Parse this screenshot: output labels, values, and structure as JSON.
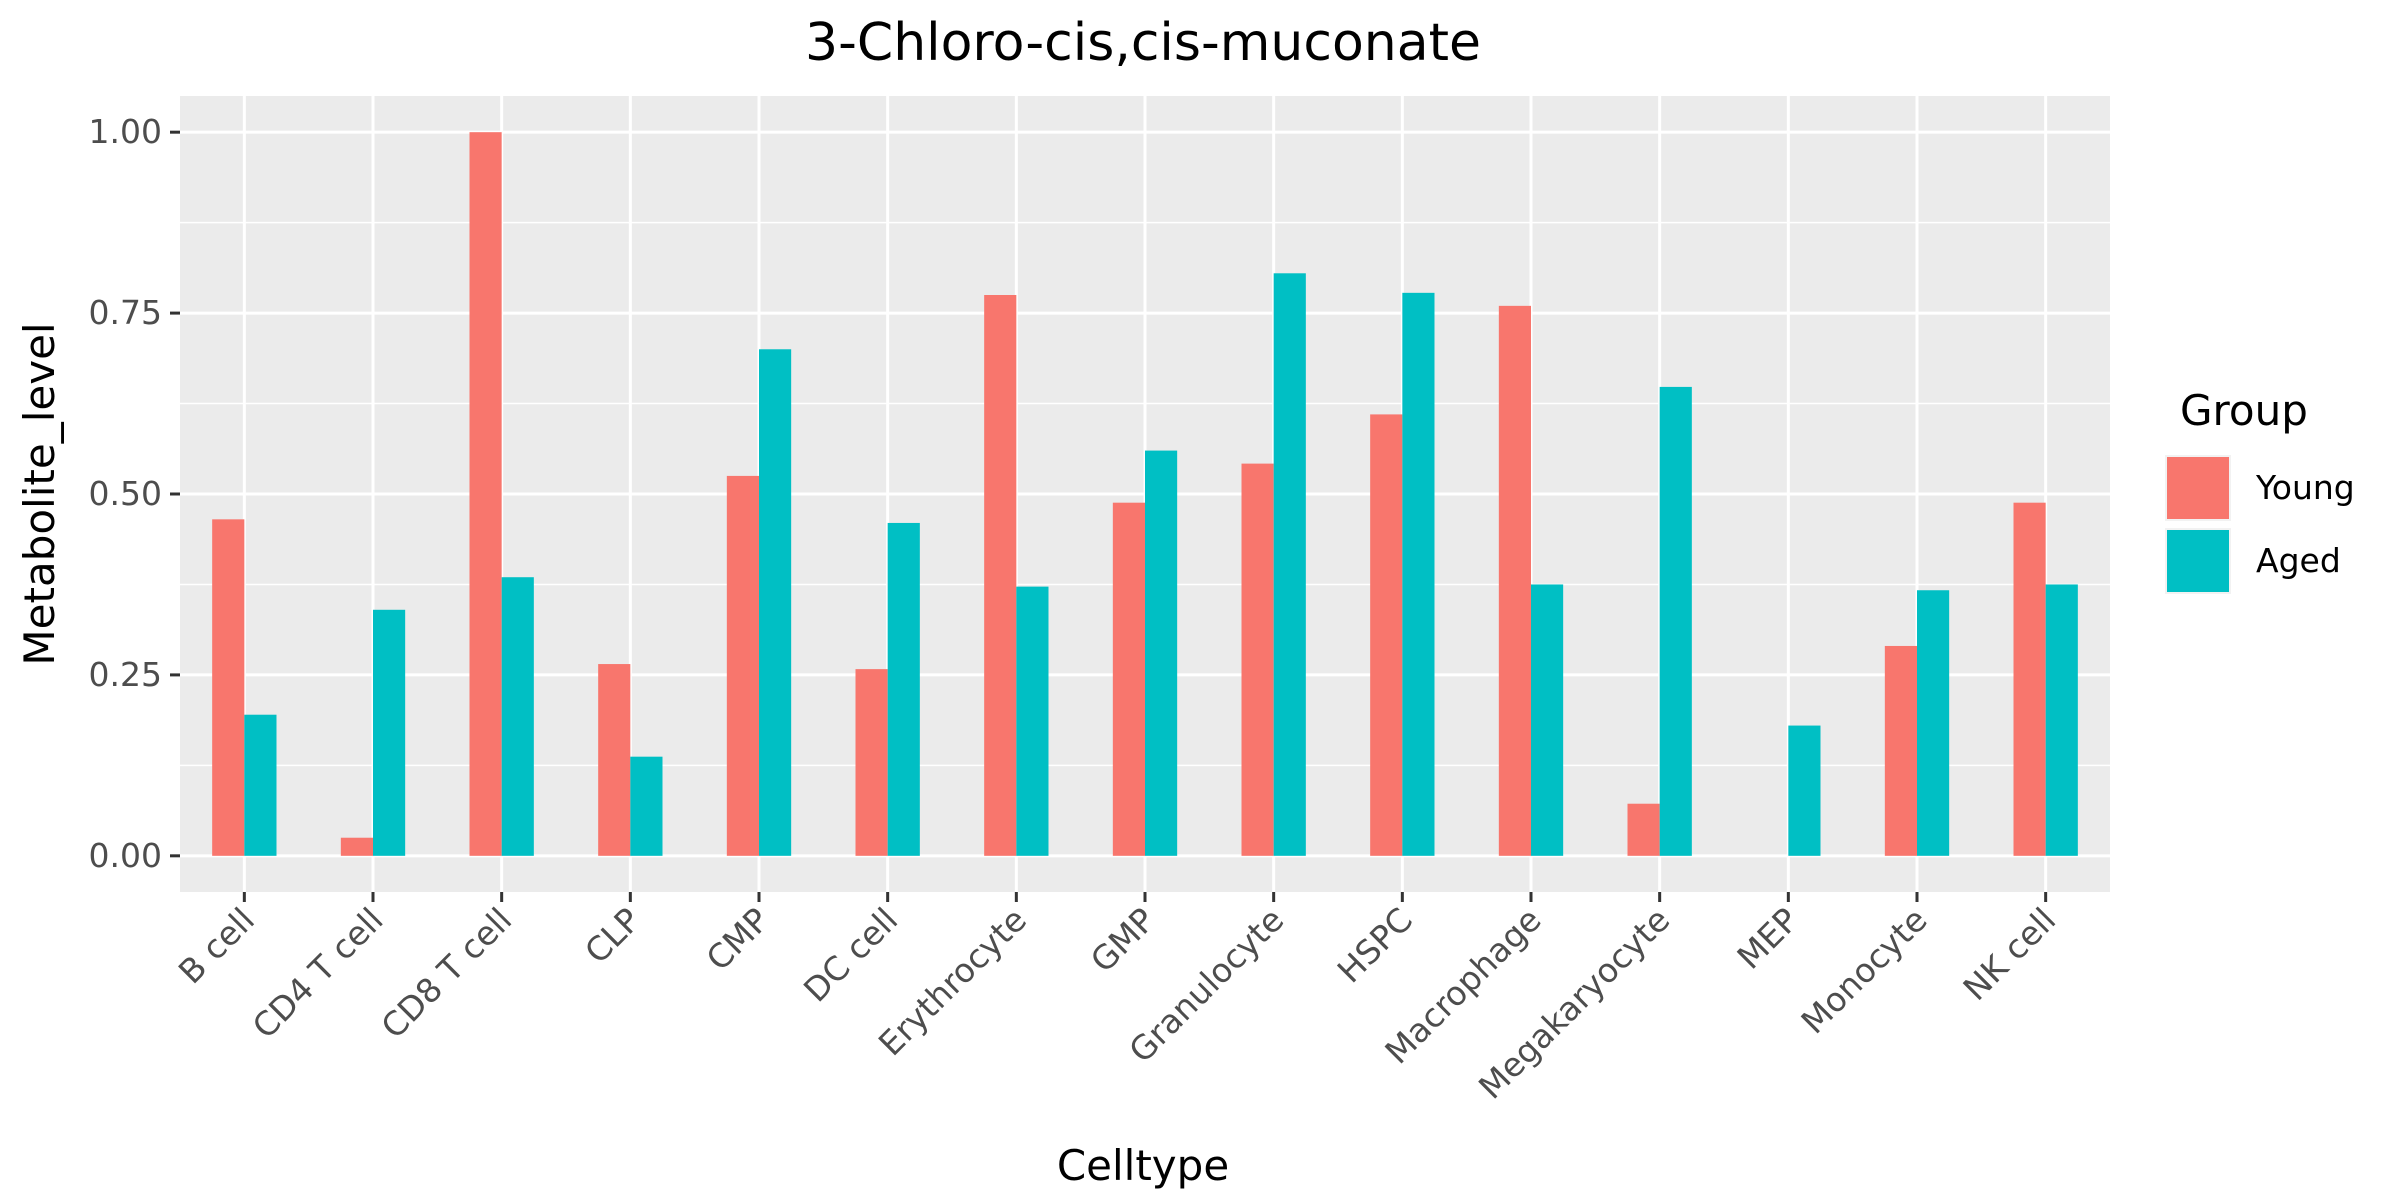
{
  "chart_data": {
    "type": "bar",
    "title": "3-Chloro-cis,cis-muconate",
    "xlabel": "Celltype",
    "ylabel": "Metabolite_level",
    "categories": [
      "B cell",
      "CD4 T cell",
      "CD8 T cell",
      "CLP",
      "CMP",
      "DC cell",
      "Erythrocyte",
      "GMP",
      "Granulocyte",
      "HSPC",
      "Macrophage",
      "Megakaryocyte",
      "MEP",
      "Monocyte",
      "NK cell"
    ],
    "series": [
      {
        "name": "Young",
        "color": "#F8766D",
        "values": [
          0.465,
          0.025,
          1.0,
          0.265,
          0.525,
          0.258,
          0.775,
          0.488,
          0.542,
          0.61,
          0.76,
          0.072,
          0.0,
          0.29,
          0.488
        ]
      },
      {
        "name": "Aged",
        "color": "#00BFC4",
        "values": [
          0.195,
          0.34,
          0.385,
          0.137,
          0.7,
          0.46,
          0.372,
          0.56,
          0.805,
          0.778,
          0.375,
          0.648,
          0.18,
          0.367,
          0.375
        ]
      }
    ],
    "ylim": [
      -0.05,
      1.05
    ],
    "yticks": [
      0.0,
      0.25,
      0.5,
      0.75,
      1.0
    ],
    "ytick_labels": [
      "0.00",
      "0.25",
      "0.50",
      "0.75",
      "1.00"
    ],
    "grid": true,
    "legend": {
      "title": "Group",
      "position": "right"
    }
  }
}
